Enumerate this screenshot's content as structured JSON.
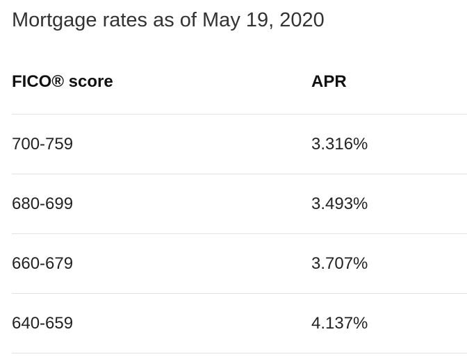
{
  "title": "Mortgage rates as of May 19, 2020",
  "table": {
    "headers": [
      "FICO® score",
      "APR"
    ],
    "rows": [
      [
        "700-759",
        "3.316%"
      ],
      [
        "680-699",
        "3.493%"
      ],
      [
        "660-679",
        "3.707%"
      ],
      [
        "640-659",
        "4.137%"
      ]
    ]
  },
  "colors": {
    "text": "#333333",
    "divider": "#e2e2e2",
    "background": "#ffffff"
  }
}
